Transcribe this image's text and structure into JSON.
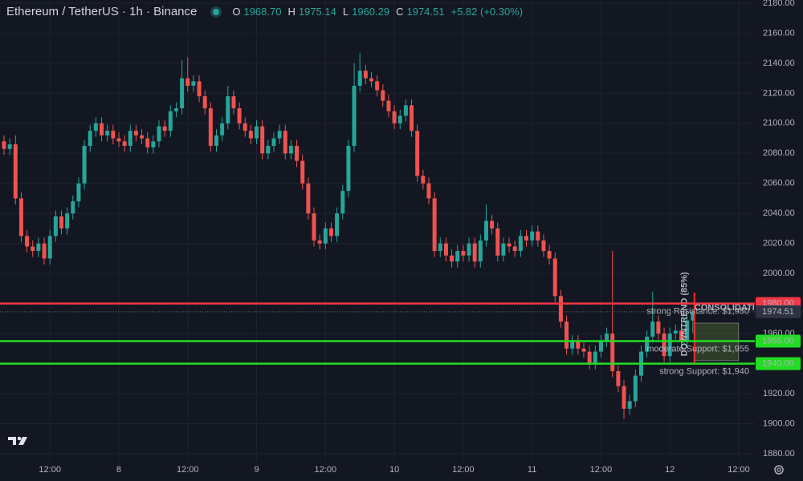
{
  "header": {
    "symbol": "Ethereum / TetherUS · 1h · Binance",
    "o_label": "O",
    "o": "1968.70",
    "h_label": "H",
    "h": "1975.14",
    "l_label": "L",
    "l": "1960.29",
    "c_label": "C",
    "c": "1974.51",
    "change": "+5.82 (+0.30%)"
  },
  "chart_data": {
    "type": "candlestick",
    "up_color": "#26a69a",
    "down_color": "#ef5350",
    "open": [
      2088,
      2083,
      2086,
      2050,
      2025,
      2018,
      2015,
      2020,
      2010,
      2025,
      2038,
      2030,
      2040,
      2048,
      2060,
      2085,
      2095,
      2100,
      2092,
      2095,
      2090,
      2088,
      2085,
      2095,
      2092,
      2090,
      2084,
      2088,
      2098,
      2095,
      2108,
      2110,
      2130,
      2125,
      2128,
      2118,
      2110,
      2085,
      2092,
      2100,
      2118,
      2110,
      2100,
      2095,
      2090,
      2098,
      2080,
      2085,
      2090,
      2095,
      2080,
      2085,
      2075,
      2060,
      2040,
      2022,
      2020,
      2030,
      2025,
      2040,
      2055,
      2085,
      2125,
      2135,
      2130,
      2128,
      2122,
      2115,
      2108,
      2100,
      2105,
      2112,
      2095,
      2065,
      2060,
      2050,
      2015,
      2020,
      2012,
      2008,
      2015,
      2012,
      2020,
      2008,
      2022,
      2035,
      2030,
      2012,
      2020,
      2018,
      2015,
      2025,
      2022,
      2028,
      2022,
      2015,
      2010,
      1985,
      1968,
      1950,
      1955,
      1950,
      1948,
      1940,
      1948,
      1955,
      1960,
      1935,
      1925,
      1910,
      1915,
      1932,
      1948,
      1958,
      1968,
      1960,
      1945,
      1960,
      1962,
      1955,
      1968.7
    ],
    "high": [
      2092,
      2090,
      2092,
      2054,
      2029,
      2022,
      2024,
      2024,
      2029,
      2042,
      2042,
      2044,
      2052,
      2064,
      2089,
      2099,
      2104,
      2104,
      2099,
      2099,
      2094,
      2092,
      2099,
      2099,
      2096,
      2094,
      2092,
      2102,
      2102,
      2112,
      2114,
      2142,
      2144,
      2132,
      2132,
      2122,
      2114,
      2096,
      2104,
      2125,
      2122,
      2114,
      2104,
      2099,
      2102,
      2102,
      2089,
      2094,
      2099,
      2099,
      2089,
      2089,
      2079,
      2064,
      2044,
      2026,
      2034,
      2034,
      2044,
      2059,
      2089,
      2140,
      2147,
      2139,
      2134,
      2132,
      2126,
      2119,
      2112,
      2109,
      2116,
      2116,
      2099,
      2069,
      2064,
      2054,
      2024,
      2024,
      2016,
      2019,
      2019,
      2024,
      2024,
      2026,
      2046,
      2039,
      2034,
      2024,
      2024,
      2022,
      2029,
      2029,
      2032,
      2032,
      2026,
      2019,
      2014,
      1989,
      1972,
      1959,
      1959,
      1954,
      1952,
      1952,
      1959,
      1964,
      2015,
      1939,
      1929,
      1919,
      1936,
      1952,
      1962,
      1988,
      1972,
      1964,
      1964,
      1966,
      1966,
      1972,
      1975.14
    ],
    "low": [
      2079,
      2079,
      2046,
      2021,
      2014,
      2011,
      2011,
      2006,
      2006,
      2021,
      2026,
      2026,
      2036,
      2044,
      2056,
      2081,
      2091,
      2088,
      2088,
      2086,
      2084,
      2081,
      2081,
      2088,
      2086,
      2080,
      2080,
      2084,
      2091,
      2091,
      2104,
      2106,
      2121,
      2121,
      2114,
      2106,
      2081,
      2081,
      2088,
      2096,
      2106,
      2096,
      2091,
      2086,
      2086,
      2076,
      2076,
      2081,
      2086,
      2076,
      2076,
      2071,
      2056,
      2036,
      2018,
      2016,
      2016,
      2021,
      2021,
      2036,
      2051,
      2081,
      2121,
      2126,
      2124,
      2118,
      2111,
      2104,
      2096,
      2096,
      2101,
      2091,
      2061,
      2056,
      2046,
      2011,
      2011,
      2008,
      2004,
      2004,
      2008,
      2008,
      2004,
      2004,
      2018,
      2026,
      2008,
      2008,
      2014,
      2011,
      2011,
      2018,
      2018,
      2018,
      2011,
      2006,
      1981,
      1964,
      1946,
      1946,
      1946,
      1944,
      1936,
      1936,
      1944,
      1951,
      1931,
      1921,
      1903,
      1906,
      1911,
      1928,
      1944,
      1954,
      1956,
      1941,
      1941,
      1956,
      1951,
      1951,
      1960.29
    ],
    "close": [
      2083,
      2086,
      2050,
      2025,
      2018,
      2015,
      2020,
      2010,
      2025,
      2038,
      2030,
      2040,
      2048,
      2060,
      2085,
      2095,
      2100,
      2092,
      2095,
      2090,
      2088,
      2085,
      2095,
      2092,
      2090,
      2084,
      2088,
      2098,
      2095,
      2108,
      2110,
      2130,
      2125,
      2128,
      2118,
      2110,
      2085,
      2092,
      2100,
      2118,
      2110,
      2100,
      2095,
      2090,
      2098,
      2080,
      2085,
      2090,
      2095,
      2080,
      2085,
      2075,
      2060,
      2040,
      2022,
      2020,
      2030,
      2025,
      2040,
      2055,
      2085,
      2125,
      2135,
      2130,
      2128,
      2122,
      2115,
      2108,
      2100,
      2105,
      2112,
      2095,
      2065,
      2060,
      2050,
      2015,
      2020,
      2012,
      2008,
      2015,
      2012,
      2020,
      2008,
      2022,
      2035,
      2030,
      2012,
      2020,
      2018,
      2015,
      2025,
      2022,
      2028,
      2022,
      2015,
      2010,
      1985,
      1968,
      1950,
      1955,
      1950,
      1948,
      1940,
      1948,
      1955,
      1960,
      1935,
      1925,
      1910,
      1915,
      1932,
      1948,
      1958,
      1968,
      1960,
      1945,
      1960,
      1962,
      1955,
      1968.7,
      1974.51
    ],
    "xlim": [
      -0.7,
      130.8
    ],
    "xticks": [
      {
        "value": 8,
        "label": "12:00"
      },
      {
        "value": 20,
        "label": "8"
      },
      {
        "value": 32,
        "label": "12:00"
      },
      {
        "value": 44,
        "label": "9"
      },
      {
        "value": 56,
        "label": "12:00"
      },
      {
        "value": 68,
        "label": "10"
      },
      {
        "value": 80,
        "label": "12:00"
      },
      {
        "value": 92,
        "label": "11"
      },
      {
        "value": 104,
        "label": "12:00"
      },
      {
        "value": 116,
        "label": "12"
      },
      {
        "value": 128,
        "label": "12:00"
      }
    ],
    "ylim": [
      1875.2,
      2182.1
    ],
    "yticks": [
      {
        "value": 1880,
        "label": "1880.00"
      },
      {
        "value": 1900,
        "label": "1900.00"
      },
      {
        "value": 1920,
        "label": "1920.00"
      },
      {
        "value": 1940,
        "label": "1940.00"
      },
      {
        "value": 1960,
        "label": "1960.00"
      },
      {
        "value": 1980,
        "label": "1980.00"
      },
      {
        "value": 2000,
        "label": "2000.00"
      },
      {
        "value": 2020,
        "label": "2020.00"
      },
      {
        "value": 2040,
        "label": "2040.00"
      },
      {
        "value": 2060,
        "label": "2060.00"
      },
      {
        "value": 2080,
        "label": "2080.00"
      },
      {
        "value": 2100,
        "label": "2100.00"
      },
      {
        "value": 2120,
        "label": "2120.00"
      },
      {
        "value": 2140,
        "label": "2140.00"
      },
      {
        "value": 2160,
        "label": "2160.00"
      },
      {
        "value": 2180,
        "label": "2180.00"
      }
    ],
    "grid": true,
    "last_price": 1974.51,
    "levels": [
      {
        "value": 1980,
        "label": "1980.00",
        "color": "#f23645",
        "note": "strong Resistance: $1,980"
      },
      {
        "value": 1955,
        "label": "1955.00",
        "color": "#22dd22",
        "note": "moderate Support: $1,955"
      },
      {
        "value": 1940,
        "label": "1940.00",
        "color": "#22dd22",
        "note": "strong Support: $1,940"
      }
    ],
    "consolidation": {
      "text": "CONSOLIDATION",
      "range": [
        1942,
        1967
      ]
    },
    "downtrend_label": "DOWNTREND (85%)"
  }
}
